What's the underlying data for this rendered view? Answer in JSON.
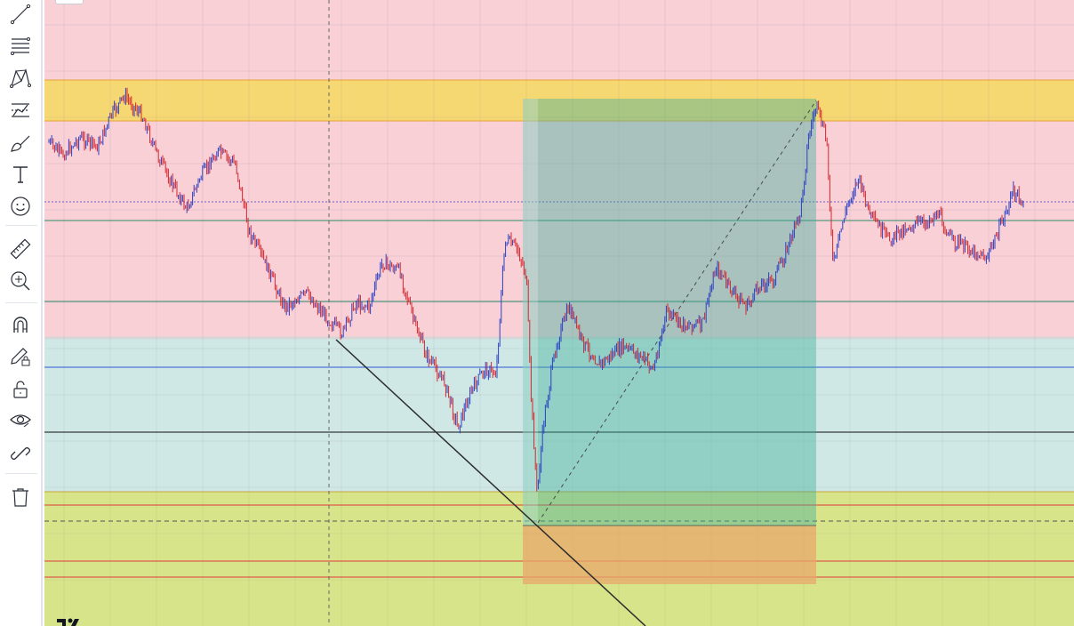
{
  "toolbar": {
    "items": [
      {
        "icon": "trend-line-icon"
      },
      {
        "icon": "fib-retracement-icon"
      },
      {
        "icon": "xabcd-pattern-icon"
      },
      {
        "icon": "forecast-tool-icon"
      },
      {
        "icon": "brush-icon"
      },
      {
        "icon": "text-tool-icon"
      },
      {
        "icon": "emoji-icon"
      },
      {
        "icon": "ruler-icon"
      },
      {
        "icon": "zoom-in-icon"
      },
      {
        "icon": "magnet-icon"
      },
      {
        "icon": "drawing-lock-pencil-icon"
      },
      {
        "icon": "unlock-icon"
      },
      {
        "icon": "eye-icon"
      },
      {
        "icon": "link-icon"
      },
      {
        "icon": "trash-icon"
      }
    ]
  },
  "colors": {
    "zone_top_pink": "#f8d0d6",
    "zone_gold": "#f6d873",
    "zone_teal": "#cfe8e6",
    "zone_bottom_yellow": "#d8e48a",
    "long_target": "#3fae9a",
    "long_stop": "#e8a86a",
    "candle_up": "#2b3fc4",
    "candle_down": "#d4262e"
  }
}
